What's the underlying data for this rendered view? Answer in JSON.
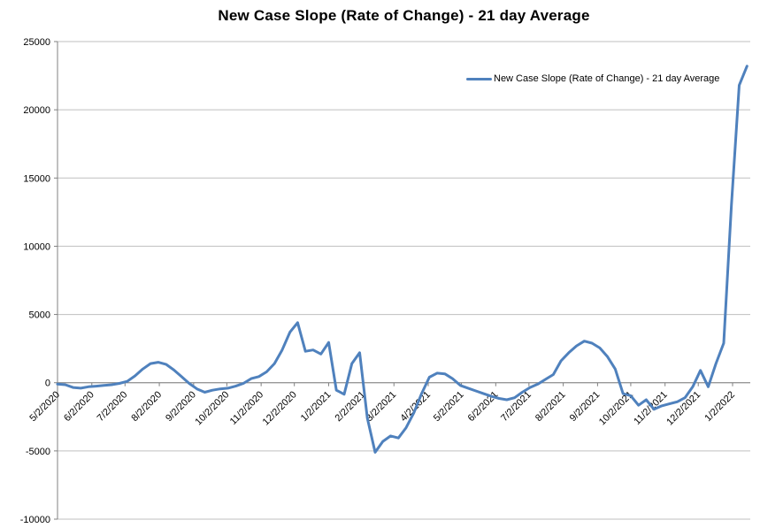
{
  "title": "New Case Slope (Rate of Change) - 21 day Average",
  "legend": {
    "entries": [
      {
        "label": "New Case Slope (Rate of Change) - 21 day Average",
        "color": "#4F81BD"
      }
    ],
    "position": "top-right"
  },
  "colors": {
    "series": "#4F81BD",
    "gridline": "#BFBFBF",
    "axis": "#808080",
    "text": "#000000",
    "background": "#FFFFFF"
  },
  "chart_data": {
    "type": "line",
    "title": "New Case Slope (Rate of Change) - 21 day Average",
    "xlabel": "",
    "ylabel": "",
    "grid": true,
    "legend_position": "top-right",
    "ylim": [
      -10000,
      25000
    ],
    "y_ticks": [
      25000,
      20000,
      15000,
      10000,
      5000,
      0,
      -5000,
      -10000
    ],
    "x_tick_labels": [
      "5/2/2020",
      "6/2/2020",
      "7/2/2020",
      "8/2/2020",
      "9/2/2020",
      "10/2/2020",
      "11/2/2020",
      "12/2/2020",
      "1/2/2021",
      "2/2/2021",
      "3/2/2021",
      "4/2/2021",
      "5/2/2021",
      "6/2/2021",
      "7/2/2021",
      "8/2/2021",
      "9/2/2021",
      "10/2/2021",
      "11/2/2021",
      "12/2/2021",
      "1/2/2022"
    ],
    "series": [
      {
        "name": "New Case Slope (Rate of Change) - 21 day Average",
        "color": "#4F81BD",
        "x": [
          "5/2/2020",
          "5/9/2020",
          "5/16/2020",
          "5/23/2020",
          "5/30/2020",
          "6/6/2020",
          "6/13/2020",
          "6/20/2020",
          "6/27/2020",
          "7/4/2020",
          "7/11/2020",
          "7/18/2020",
          "7/25/2020",
          "8/1/2020",
          "8/8/2020",
          "8/15/2020",
          "8/22/2020",
          "8/29/2020",
          "9/5/2020",
          "9/12/2020",
          "9/19/2020",
          "9/26/2020",
          "10/3/2020",
          "10/10/2020",
          "10/17/2020",
          "10/24/2020",
          "10/31/2020",
          "11/7/2020",
          "11/14/2020",
          "11/21/2020",
          "11/28/2020",
          "12/5/2020",
          "12/12/2020",
          "12/19/2020",
          "12/26/2020",
          "1/2/2021",
          "1/9/2021",
          "1/16/2021",
          "1/23/2021",
          "1/30/2021",
          "2/6/2021",
          "2/13/2021",
          "2/20/2021",
          "2/27/2021",
          "3/6/2021",
          "3/13/2021",
          "3/20/2021",
          "3/27/2021",
          "4/3/2021",
          "4/10/2021",
          "4/17/2021",
          "4/24/2021",
          "5/1/2021",
          "5/8/2021",
          "5/15/2021",
          "5/22/2021",
          "5/29/2021",
          "6/5/2021",
          "6/12/2021",
          "6/19/2021",
          "6/26/2021",
          "7/3/2021",
          "7/10/2021",
          "7/17/2021",
          "7/24/2021",
          "7/31/2021",
          "8/7/2021",
          "8/14/2021",
          "8/21/2021",
          "8/28/2021",
          "9/4/2021",
          "9/11/2021",
          "9/18/2021",
          "9/25/2021",
          "10/2/2021",
          "10/9/2021",
          "10/16/2021",
          "10/23/2021",
          "10/30/2021",
          "11/6/2021",
          "11/13/2021",
          "11/20/2021",
          "11/27/2021",
          "12/4/2021",
          "12/11/2021",
          "12/18/2021",
          "12/25/2021",
          "1/1/2022",
          "1/8/2022",
          "1/15/2022"
        ],
        "values": [
          -100,
          -150,
          -350,
          -400,
          -300,
          -250,
          -200,
          -150,
          -50,
          100,
          500,
          1000,
          1400,
          1500,
          1350,
          950,
          450,
          -50,
          -450,
          -700,
          -550,
          -450,
          -400,
          -250,
          -50,
          300,
          450,
          800,
          1400,
          2400,
          3700,
          4400,
          2300,
          2400,
          2100,
          2950,
          -550,
          -850,
          1400,
          2200,
          -2600,
          -5100,
          -4300,
          -3900,
          -4050,
          -3300,
          -2200,
          -800,
          400,
          700,
          650,
          300,
          -200,
          -400,
          -600,
          -800,
          -1000,
          -1150,
          -1250,
          -1100,
          -700,
          -350,
          -100,
          250,
          600,
          1600,
          2200,
          2700,
          3050,
          2900,
          2550,
          1900,
          1000,
          -800,
          -950,
          -1650,
          -1250,
          -1950,
          -1700,
          -1550,
          -1400,
          -1100,
          -300,
          900,
          -300,
          1400,
          2900,
          13000,
          21800,
          23200
        ]
      }
    ]
  }
}
